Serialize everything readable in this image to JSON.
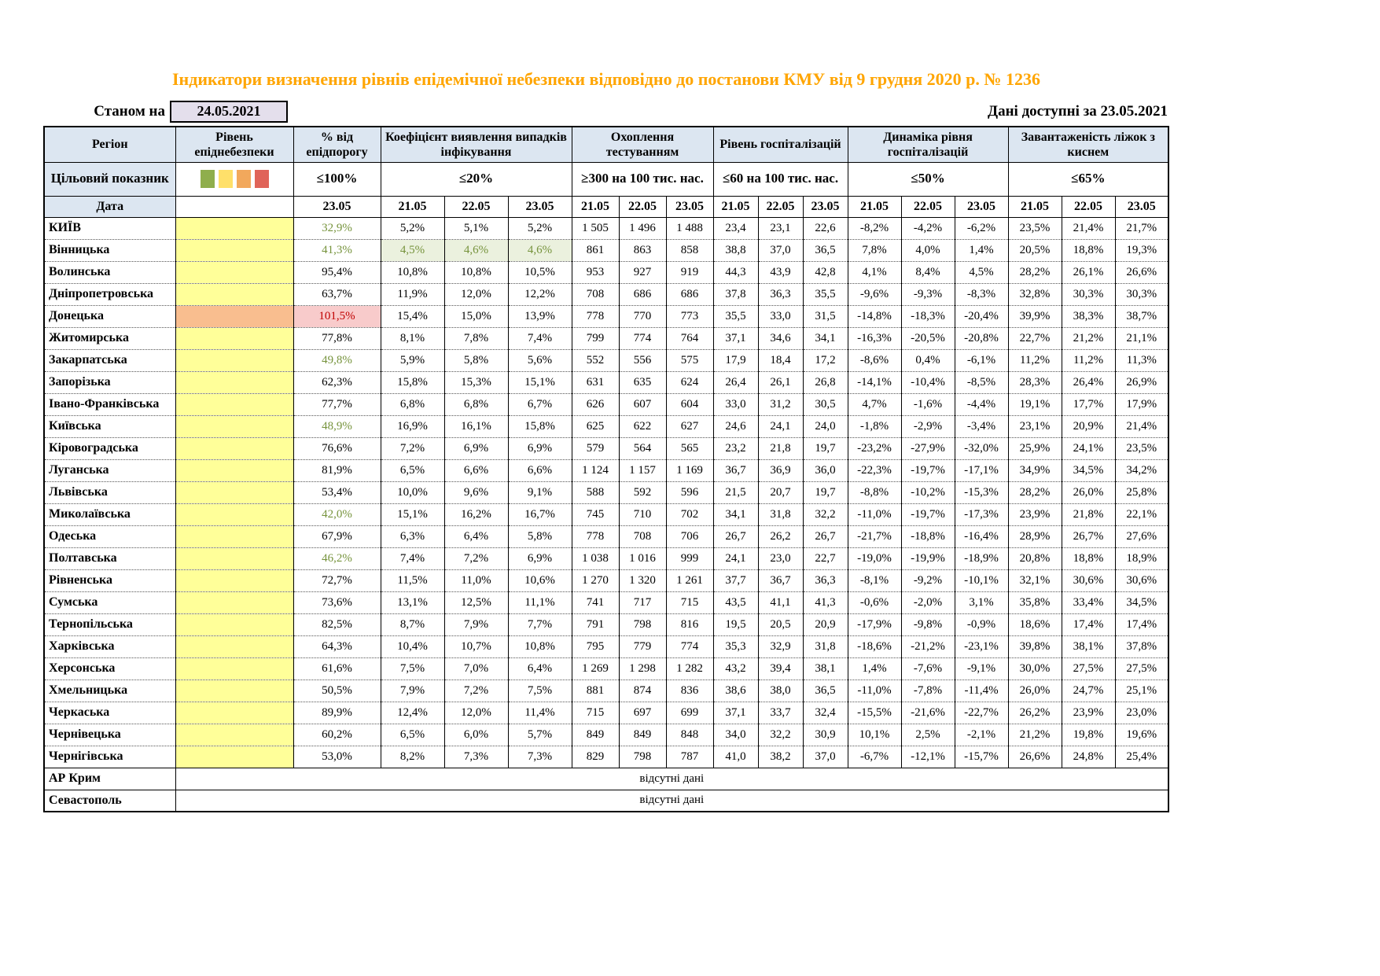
{
  "title": "Індикатори визначення рівнів епідемічної небезпеки відповідно до постанови КМУ від 9 грудня 2020 р. № 1236",
  "as_of": {
    "label": "Станом на",
    "date": "24.05.2021"
  },
  "available": "Дані доступні за 23.05.2021",
  "header": {
    "region": "Регіон",
    "level": "Рівень епіднебезпеки",
    "pct": "% від епідпорогу",
    "detection": "Коефіцієнт виявлення випадків інфікування",
    "testing": "Охоплення тестуванням",
    "hosp": "Рівень госпіталізацій",
    "dynamics": "Динаміка рівня госпіталізацій",
    "beds": "Завантаженість ліжок з киснем",
    "target_label": "Цільовий показник",
    "date_label": "Дата",
    "targets": {
      "pct": "≤100%",
      "detection": "≤20%",
      "testing": "≥300 на 100 тис. нас.",
      "hosp": "≤60 на 100 тис. нас.",
      "dynamics": "≤50%",
      "beds": "≤65%"
    },
    "date_single": "23.05",
    "date_triple": [
      "21.05",
      "22.05",
      "23.05"
    ]
  },
  "legend_colors": [
    "#8FAE4C",
    "#FFE06A",
    "#F2A85C",
    "#E06459"
  ],
  "colors": {
    "title_color": "#FFA500",
    "header_bg": "#DCE6F1",
    "datebox_bg": "#E4DFEC",
    "level_yellow": "#FFFF99",
    "level_orange": "#F9BE8F",
    "green_text": "#76933C",
    "green_bg": "#EBF1DE",
    "red_text": "#C00000",
    "red_bg": "#F8CBCB"
  },
  "rows": [
    {
      "region": "КИЇВ",
      "level": "yellow",
      "pct": "32,9%",
      "pct_style": "green",
      "detection": [
        "5,2%",
        "5,1%",
        "5,2%"
      ],
      "testing": [
        "1 505",
        "1 496",
        "1 488"
      ],
      "hosp": [
        "23,4",
        "23,1",
        "22,6"
      ],
      "dynamics": [
        "-8,2%",
        "-4,2%",
        "-6,2%"
      ],
      "beds": [
        "23,5%",
        "21,4%",
        "21,7%"
      ]
    },
    {
      "region": "Вінницька",
      "level": "yellow",
      "pct": "41,3%",
      "pct_style": "green",
      "detection": [
        "4,5%",
        "4,6%",
        "4,6%"
      ],
      "detection_style": "greenbg",
      "testing": [
        "861",
        "863",
        "858"
      ],
      "hosp": [
        "38,8",
        "37,0",
        "36,5"
      ],
      "dynamics": [
        "7,8%",
        "4,0%",
        "1,4%"
      ],
      "beds": [
        "20,5%",
        "18,8%",
        "19,3%"
      ]
    },
    {
      "region": "Волинська",
      "level": "yellow",
      "pct": "95,4%",
      "detection": [
        "10,8%",
        "10,8%",
        "10,5%"
      ],
      "testing": [
        "953",
        "927",
        "919"
      ],
      "hosp": [
        "44,3",
        "43,9",
        "42,8"
      ],
      "dynamics": [
        "4,1%",
        "8,4%",
        "4,5%"
      ],
      "beds": [
        "28,2%",
        "26,1%",
        "26,6%"
      ]
    },
    {
      "region": "Дніпропетровська",
      "level": "yellow",
      "pct": "63,7%",
      "detection": [
        "11,9%",
        "12,0%",
        "12,2%"
      ],
      "testing": [
        "708",
        "686",
        "686"
      ],
      "hosp": [
        "37,8",
        "36,3",
        "35,5"
      ],
      "dynamics": [
        "-9,6%",
        "-9,3%",
        "-8,3%"
      ],
      "beds": [
        "32,8%",
        "30,3%",
        "30,3%"
      ]
    },
    {
      "region": "Донецька",
      "level": "orange",
      "pct": "101,5%",
      "pct_style": "red",
      "detection": [
        "15,4%",
        "15,0%",
        "13,9%"
      ],
      "testing": [
        "778",
        "770",
        "773"
      ],
      "hosp": [
        "35,5",
        "33,0",
        "31,5"
      ],
      "dynamics": [
        "-14,8%",
        "-18,3%",
        "-20,4%"
      ],
      "beds": [
        "39,9%",
        "38,3%",
        "38,7%"
      ]
    },
    {
      "region": "Житомирська",
      "level": "yellow",
      "pct": "77,8%",
      "detection": [
        "8,1%",
        "7,8%",
        "7,4%"
      ],
      "testing": [
        "799",
        "774",
        "764"
      ],
      "hosp": [
        "37,1",
        "34,6",
        "34,1"
      ],
      "dynamics": [
        "-16,3%",
        "-20,5%",
        "-20,8%"
      ],
      "beds": [
        "22,7%",
        "21,2%",
        "21,1%"
      ]
    },
    {
      "region": "Закарпатська",
      "level": "yellow",
      "pct": "49,8%",
      "pct_style": "green",
      "detection": [
        "5,9%",
        "5,8%",
        "5,6%"
      ],
      "testing": [
        "552",
        "556",
        "575"
      ],
      "hosp": [
        "17,9",
        "18,4",
        "17,2"
      ],
      "dynamics": [
        "-8,6%",
        "0,4%",
        "-6,1%"
      ],
      "beds": [
        "11,2%",
        "11,2%",
        "11,3%"
      ]
    },
    {
      "region": "Запорізька",
      "level": "yellow",
      "pct": "62,3%",
      "detection": [
        "15,8%",
        "15,3%",
        "15,1%"
      ],
      "testing": [
        "631",
        "635",
        "624"
      ],
      "hosp": [
        "26,4",
        "26,1",
        "26,8"
      ],
      "dynamics": [
        "-14,1%",
        "-10,4%",
        "-8,5%"
      ],
      "beds": [
        "28,3%",
        "26,4%",
        "26,9%"
      ]
    },
    {
      "region": "Івано-Франківська",
      "level": "yellow",
      "pct": "77,7%",
      "detection": [
        "6,8%",
        "6,8%",
        "6,7%"
      ],
      "testing": [
        "626",
        "607",
        "604"
      ],
      "hosp": [
        "33,0",
        "31,2",
        "30,5"
      ],
      "dynamics": [
        "4,7%",
        "-1,6%",
        "-4,4%"
      ],
      "beds": [
        "19,1%",
        "17,7%",
        "17,9%"
      ]
    },
    {
      "region": "Київська",
      "level": "yellow",
      "pct": "48,9%",
      "pct_style": "green",
      "detection": [
        "16,9%",
        "16,1%",
        "15,8%"
      ],
      "testing": [
        "625",
        "622",
        "627"
      ],
      "hosp": [
        "24,6",
        "24,1",
        "24,0"
      ],
      "dynamics": [
        "-1,8%",
        "-2,9%",
        "-3,4%"
      ],
      "beds": [
        "23,1%",
        "20,9%",
        "21,4%"
      ]
    },
    {
      "region": "Кіровоградська",
      "level": "yellow",
      "pct": "76,6%",
      "detection": [
        "7,2%",
        "6,9%",
        "6,9%"
      ],
      "testing": [
        "579",
        "564",
        "565"
      ],
      "hosp": [
        "23,2",
        "21,8",
        "19,7"
      ],
      "dynamics": [
        "-23,2%",
        "-27,9%",
        "-32,0%"
      ],
      "beds": [
        "25,9%",
        "24,1%",
        "23,5%"
      ]
    },
    {
      "region": "Луганська",
      "level": "yellow",
      "pct": "81,9%",
      "detection": [
        "6,5%",
        "6,6%",
        "6,6%"
      ],
      "testing": [
        "1 124",
        "1 157",
        "1 169"
      ],
      "hosp": [
        "36,7",
        "36,9",
        "36,0"
      ],
      "dynamics": [
        "-22,3%",
        "-19,7%",
        "-17,1%"
      ],
      "beds": [
        "34,9%",
        "34,5%",
        "34,2%"
      ]
    },
    {
      "region": "Львівська",
      "level": "yellow",
      "pct": "53,4%",
      "detection": [
        "10,0%",
        "9,6%",
        "9,1%"
      ],
      "testing": [
        "588",
        "592",
        "596"
      ],
      "hosp": [
        "21,5",
        "20,7",
        "19,7"
      ],
      "dynamics": [
        "-8,8%",
        "-10,2%",
        "-15,3%"
      ],
      "beds": [
        "28,2%",
        "26,0%",
        "25,8%"
      ]
    },
    {
      "region": "Миколаївська",
      "level": "yellow",
      "pct": "42,0%",
      "pct_style": "green",
      "detection": [
        "15,1%",
        "16,2%",
        "16,7%"
      ],
      "testing": [
        "745",
        "710",
        "702"
      ],
      "hosp": [
        "34,1",
        "31,8",
        "32,2"
      ],
      "dynamics": [
        "-11,0%",
        "-19,7%",
        "-17,3%"
      ],
      "beds": [
        "23,9%",
        "21,8%",
        "22,1%"
      ]
    },
    {
      "region": "Одеська",
      "level": "yellow",
      "pct": "67,9%",
      "detection": [
        "6,3%",
        "6,4%",
        "5,8%"
      ],
      "testing": [
        "778",
        "708",
        "706"
      ],
      "hosp": [
        "26,7",
        "26,2",
        "26,7"
      ],
      "dynamics": [
        "-21,7%",
        "-18,8%",
        "-16,4%"
      ],
      "beds": [
        "28,9%",
        "26,7%",
        "27,6%"
      ]
    },
    {
      "region": "Полтавська",
      "level": "yellow",
      "pct": "46,2%",
      "pct_style": "green",
      "detection": [
        "7,4%",
        "7,2%",
        "6,9%"
      ],
      "testing": [
        "1 038",
        "1 016",
        "999"
      ],
      "hosp": [
        "24,1",
        "23,0",
        "22,7"
      ],
      "dynamics": [
        "-19,0%",
        "-19,9%",
        "-18,9%"
      ],
      "beds": [
        "20,8%",
        "18,8%",
        "18,9%"
      ]
    },
    {
      "region": "Рівненська",
      "level": "yellow",
      "pct": "72,7%",
      "detection": [
        "11,5%",
        "11,0%",
        "10,6%"
      ],
      "testing": [
        "1 270",
        "1 320",
        "1 261"
      ],
      "hosp": [
        "37,7",
        "36,7",
        "36,3"
      ],
      "dynamics": [
        "-8,1%",
        "-9,2%",
        "-10,1%"
      ],
      "beds": [
        "32,1%",
        "30,6%",
        "30,6%"
      ]
    },
    {
      "region": "Сумська",
      "level": "yellow",
      "pct": "73,6%",
      "detection": [
        "13,1%",
        "12,5%",
        "11,1%"
      ],
      "testing": [
        "741",
        "717",
        "715"
      ],
      "hosp": [
        "43,5",
        "41,1",
        "41,3"
      ],
      "dynamics": [
        "-0,6%",
        "-2,0%",
        "3,1%"
      ],
      "beds": [
        "35,8%",
        "33,4%",
        "34,5%"
      ]
    },
    {
      "region": "Тернопільська",
      "level": "yellow",
      "pct": "82,5%",
      "detection": [
        "8,7%",
        "7,9%",
        "7,7%"
      ],
      "testing": [
        "791",
        "798",
        "816"
      ],
      "hosp": [
        "19,5",
        "20,5",
        "20,9"
      ],
      "dynamics": [
        "-17,9%",
        "-9,8%",
        "-0,9%"
      ],
      "beds": [
        "18,6%",
        "17,4%",
        "17,4%"
      ]
    },
    {
      "region": "Харківська",
      "level": "yellow",
      "pct": "64,3%",
      "detection": [
        "10,4%",
        "10,7%",
        "10,8%"
      ],
      "testing": [
        "795",
        "779",
        "774"
      ],
      "hosp": [
        "35,3",
        "32,9",
        "31,8"
      ],
      "dynamics": [
        "-18,6%",
        "-21,2%",
        "-23,1%"
      ],
      "beds": [
        "39,8%",
        "38,1%",
        "37,8%"
      ]
    },
    {
      "region": "Херсонська",
      "level": "yellow",
      "pct": "61,6%",
      "detection": [
        "7,5%",
        "7,0%",
        "6,4%"
      ],
      "testing": [
        "1 269",
        "1 298",
        "1 282"
      ],
      "hosp": [
        "43,2",
        "39,4",
        "38,1"
      ],
      "dynamics": [
        "1,4%",
        "-7,6%",
        "-9,1%"
      ],
      "beds": [
        "30,0%",
        "27,5%",
        "27,5%"
      ]
    },
    {
      "region": "Хмельницька",
      "level": "yellow",
      "pct": "50,5%",
      "detection": [
        "7,9%",
        "7,2%",
        "7,5%"
      ],
      "testing": [
        "881",
        "874",
        "836"
      ],
      "hosp": [
        "38,6",
        "38,0",
        "36,5"
      ],
      "dynamics": [
        "-11,0%",
        "-7,8%",
        "-11,4%"
      ],
      "beds": [
        "26,0%",
        "24,7%",
        "25,1%"
      ]
    },
    {
      "region": "Черкаська",
      "level": "yellow",
      "pct": "89,9%",
      "detection": [
        "12,4%",
        "12,0%",
        "11,4%"
      ],
      "testing": [
        "715",
        "697",
        "699"
      ],
      "hosp": [
        "37,1",
        "33,7",
        "32,4"
      ],
      "dynamics": [
        "-15,5%",
        "-21,6%",
        "-22,7%"
      ],
      "beds": [
        "26,2%",
        "23,9%",
        "23,0%"
      ]
    },
    {
      "region": "Чернівецька",
      "level": "yellow",
      "pct": "60,2%",
      "detection": [
        "6,5%",
        "6,0%",
        "5,7%"
      ],
      "testing": [
        "849",
        "849",
        "848"
      ],
      "hosp": [
        "34,0",
        "32,2",
        "30,9"
      ],
      "dynamics": [
        "10,1%",
        "2,5%",
        "-2,1%"
      ],
      "beds": [
        "21,2%",
        "19,8%",
        "19,6%"
      ]
    },
    {
      "region": "Чернігівська",
      "level": "yellow",
      "pct": "53,0%",
      "detection": [
        "8,2%",
        "7,3%",
        "7,3%"
      ],
      "testing": [
        "829",
        "798",
        "787"
      ],
      "hosp": [
        "41,0",
        "38,2",
        "37,0"
      ],
      "dynamics": [
        "-6,7%",
        "-12,1%",
        "-15,7%"
      ],
      "beds": [
        "26,6%",
        "24,8%",
        "25,4%"
      ]
    }
  ],
  "no_data_rows": [
    {
      "region": "АР Крим",
      "text": "відсутні дані"
    },
    {
      "region": "Севастополь",
      "text": "відсутні дані"
    }
  ]
}
